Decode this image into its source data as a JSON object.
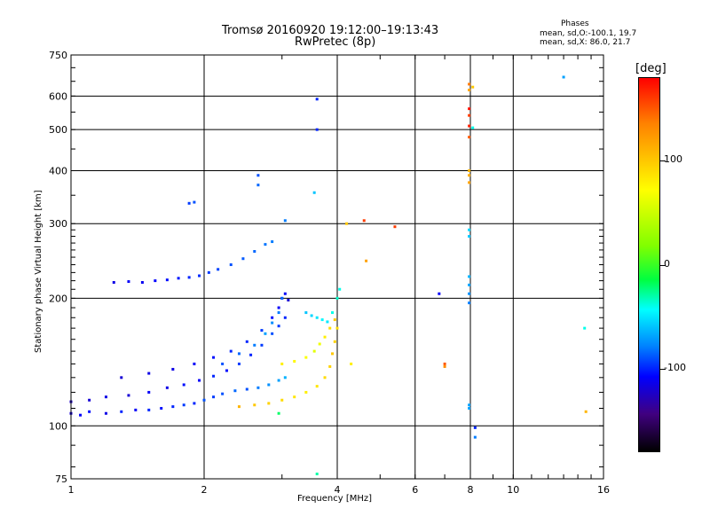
{
  "titles": {
    "line1": "Tromsø 20160920 19:12:00–19:13:43",
    "line2": "RwPretec (8p)"
  },
  "phases": {
    "heading": "Phases",
    "o_line": "mean, sd,O:-100.1, 19.7",
    "x_line": "mean, sd,X:  86.0, 21.7"
  },
  "colorbar": {
    "unit": "[deg]",
    "ticks": [
      {
        "value": 100,
        "label": "100"
      },
      {
        "value": 0,
        "label": "0"
      },
      {
        "value": -100,
        "label": "-100"
      }
    ],
    "range": [
      -180,
      180
    ],
    "colors": [
      "#ff0000",
      "#ff8000",
      "#ffff00",
      "#80ff00",
      "#00ff40",
      "#00ffff",
      "#0080ff",
      "#0000ff",
      "#400080",
      "#000000"
    ]
  },
  "chart_data": {
    "type": "scatter",
    "title": "Tromsø 20160920 19:12:00–19:13:43",
    "subtitle": "RwPretec (8p)",
    "xlabel": "Frequency [MHz]",
    "ylabel": "Stationary phase Virtual Height [km]",
    "x_scale": "log",
    "y_scale": "log",
    "xlim": [
      1,
      16
    ],
    "ylim": [
      75,
      750
    ],
    "grid": true,
    "x_ticks": [
      {
        "value": 1,
        "label": "1"
      },
      {
        "value": 2,
        "label": "2"
      },
      {
        "value": 4,
        "label": "4"
      },
      {
        "value": 6,
        "label": "6"
      },
      {
        "value": 8,
        "label": "8"
      },
      {
        "value": 10,
        "label": "10"
      },
      {
        "value": 16,
        "label": "16"
      }
    ],
    "y_ticks": [
      {
        "value": 75,
        "label": "75"
      },
      {
        "value": 100,
        "label": "100"
      },
      {
        "value": 200,
        "label": "200"
      },
      {
        "value": 300,
        "label": "300"
      },
      {
        "value": 400,
        "label": "400"
      },
      {
        "value": 500,
        "label": "500"
      },
      {
        "value": 600,
        "label": "600"
      },
      {
        "value": 750,
        "label": "750"
      }
    ],
    "color_by": "phase [deg]",
    "traces": [
      {
        "x": [
          1.0,
          1.05,
          1.1,
          1.2,
          1.3,
          1.4,
          1.5,
          1.6,
          1.7,
          1.8,
          1.9,
          2.0,
          2.1,
          2.2,
          2.35,
          2.5,
          2.65,
          2.8,
          2.95,
          3.05
        ],
        "y": [
          107,
          106,
          108,
          107,
          108,
          109,
          109,
          110,
          111,
          112,
          113,
          115,
          117,
          119,
          121,
          122,
          123,
          125,
          128,
          130
        ],
        "phase": [
          -120,
          -110,
          -105,
          -115,
          -100,
          -110,
          -100,
          -105,
          -100,
          -95,
          -100,
          -90,
          -95,
          -90,
          -85,
          -90,
          -80,
          -75,
          -70,
          -65
        ]
      },
      {
        "x": [
          1.0,
          1.1,
          1.2,
          1.35,
          1.5,
          1.65,
          1.8,
          1.95,
          2.1,
          2.25,
          2.4,
          2.55,
          2.7,
          2.85,
          2.95,
          3.05
        ],
        "y": [
          114,
          115,
          117,
          118,
          120,
          123,
          125,
          128,
          131,
          135,
          140,
          147,
          155,
          165,
          172,
          180
        ],
        "phase": [
          -125,
          -120,
          -115,
          -120,
          -110,
          -115,
          -105,
          -110,
          -100,
          -105,
          -95,
          -100,
          -95,
          -90,
          -95,
          -100
        ]
      },
      {
        "x": [
          1.3,
          1.5,
          1.7,
          1.9,
          2.1,
          2.3,
          2.5,
          2.7,
          2.85,
          2.95,
          3.0,
          3.05,
          3.1
        ],
        "y": [
          130,
          133,
          136,
          140,
          145,
          150,
          158,
          168,
          180,
          190,
          200,
          205,
          198
        ],
        "phase": [
          -120,
          -115,
          -115,
          -110,
          -105,
          -100,
          -100,
          -95,
          -105,
          -110,
          -115,
          -110,
          -120
        ]
      },
      {
        "x": [
          1.25,
          1.35,
          1.45,
          1.55,
          1.65,
          1.75,
          1.85,
          1.95,
          2.05,
          2.15,
          2.3,
          2.45,
          2.6,
          2.75,
          2.85
        ],
        "y": [
          218,
          219,
          218,
          220,
          221,
          223,
          224,
          226,
          230,
          234,
          240,
          248,
          258,
          268,
          272
        ],
        "phase": [
          -115,
          -110,
          -112,
          -108,
          -105,
          -103,
          -100,
          -98,
          -95,
          -93,
          -90,
          -88,
          -85,
          -82,
          -80
        ]
      },
      {
        "x": [
          2.4,
          2.6,
          2.8,
          3.0,
          3.2,
          3.4,
          3.6,
          3.75,
          3.85,
          3.9,
          3.95,
          4.0
        ],
        "y": [
          111,
          112,
          113,
          115,
          117,
          120,
          124,
          130,
          138,
          148,
          158,
          170
        ],
        "phase": [
          110,
          100,
          95,
          90,
          85,
          80,
          85,
          90,
          95,
          100,
          95,
          90
        ]
      },
      {
        "x": [
          3.0,
          3.2,
          3.4,
          3.55,
          3.65,
          3.75,
          3.85,
          3.95
        ],
        "y": [
          140,
          142,
          145,
          150,
          156,
          162,
          170,
          178
        ],
        "phase": [
          80,
          75,
          70,
          60,
          65,
          80,
          90,
          100
        ]
      },
      {
        "x": [
          3.4,
          3.5,
          3.6,
          3.7,
          3.8,
          3.9,
          4.0,
          4.05
        ],
        "y": [
          185,
          182,
          180,
          178,
          176,
          185,
          200,
          210
        ],
        "phase": [
          -60,
          -55,
          -50,
          -45,
          -50,
          -40,
          -35,
          -40
        ]
      },
      {
        "x": [
          2.2,
          2.4,
          2.6,
          2.75,
          2.85,
          2.95,
          3.0
        ],
        "y": [
          140,
          148,
          155,
          165,
          175,
          185,
          200
        ],
        "phase": [
          -90,
          -85,
          -80,
          -70,
          -75,
          -80,
          -85
        ]
      },
      {
        "x": [
          7.95,
          7.95,
          7.95,
          7.95,
          7.95,
          7.95,
          7.95,
          7.95
        ],
        "y": [
          195,
          205,
          215,
          225,
          280,
          290,
          112,
          110
        ],
        "phase": [
          -80,
          -75,
          -70,
          -65,
          -60,
          -55,
          -70,
          -70
        ]
      },
      {
        "x": [
          7.95,
          7.95,
          7.95,
          7.95,
          7.95,
          7.95,
          7.95,
          7.95,
          7.95,
          8.1
        ],
        "y": [
          640,
          620,
          560,
          540,
          510,
          480,
          400,
          390,
          375,
          630
        ],
        "phase": [
          140,
          120,
          175,
          160,
          170,
          150,
          110,
          115,
          120,
          100
        ]
      },
      {
        "x": [
          1.85,
          1.9,
          2.65,
          2.65,
          3.05,
          3.6,
          3.6,
          3.55,
          4.2,
          4.6,
          5.4,
          4.65,
          4.3,
          6.8,
          7.0,
          7.0,
          8.1,
          8.2,
          13.0,
          14.5,
          14.6,
          8.2,
          2.95,
          3.6
        ],
        "y": [
          335,
          337,
          390,
          370,
          305,
          590,
          500,
          355,
          300,
          305,
          295,
          245,
          140,
          205,
          140,
          138,
          505,
          94,
          665,
          170,
          108,
          99,
          107,
          77
        ],
        "phase": [
          -95,
          -90,
          -90,
          -85,
          -80,
          -100,
          -100,
          -60,
          100,
          160,
          160,
          120,
          80,
          -110,
          150,
          130,
          -40,
          -80,
          -70,
          -40,
          110,
          -100,
          -20,
          -30
        ]
      }
    ]
  }
}
